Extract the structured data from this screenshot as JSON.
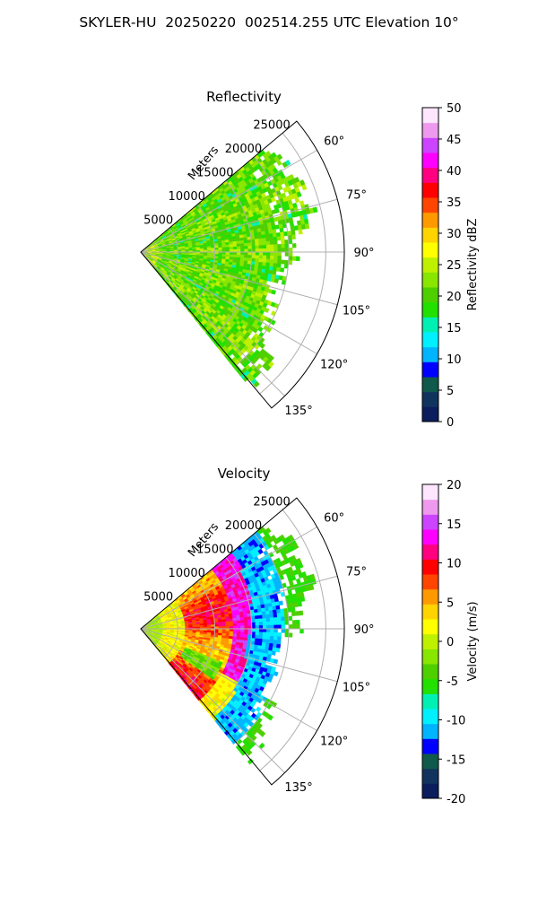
{
  "figure": {
    "title": "SKYLER-HU  20250220  002514.255 UTC Elevation 10°"
  },
  "chart_data": [
    {
      "type": "heatmap",
      "subtype": "polar-sector (PPI)",
      "title": "Reflectivity",
      "radial_axis_label": "Meters",
      "radial_ticks": [
        5000,
        10000,
        15000,
        20000,
        25000
      ],
      "radial_range": [
        0,
        27500
      ],
      "angle_ticks_deg": [
        60,
        75,
        90,
        105,
        120,
        135
      ],
      "angle_tick_labels": [
        "60°",
        "75°",
        "90°",
        "105°",
        "120°",
        "135°"
      ],
      "angle_range_deg": [
        50,
        140
      ],
      "grid": true,
      "colorbar": {
        "label": "Reflectivity dBZ",
        "range": [
          0,
          50
        ],
        "ticks": [
          0,
          5,
          10,
          15,
          20,
          25,
          30,
          35,
          40,
          45,
          50
        ],
        "colors": [
          "#0b1d5c",
          "#10345e",
          "#0f5a4a",
          "#0000ff",
          "#00b4ff",
          "#00f0ff",
          "#00f0b4",
          "#22e000",
          "#4ecf00",
          "#88e600",
          "#bff000",
          "#ffff00",
          "#ffd400",
          "#ff9900",
          "#ff4500",
          "#ff0000",
          "#ff0080",
          "#ff00ff",
          "#cc44ff",
          "#ee99ee",
          "#ffe6ff"
        ]
      },
      "field_summary": "Mostly 18–26 dBZ (green/yellow) across the whole sector out to ~23000 m; slightly higher values near the radar"
    },
    {
      "type": "heatmap",
      "subtype": "polar-sector (PPI)",
      "title": "Velocity",
      "radial_axis_label": "Meters",
      "radial_ticks": [
        5000,
        10000,
        15000,
        20000,
        25000
      ],
      "radial_range": [
        0,
        27500
      ],
      "angle_ticks_deg": [
        60,
        75,
        90,
        105,
        120,
        135
      ],
      "angle_tick_labels": [
        "60°",
        "75°",
        "90°",
        "105°",
        "120°",
        "135°"
      ],
      "angle_range_deg": [
        50,
        140
      ],
      "grid": true,
      "colorbar": {
        "label": "Velocity (m/s)",
        "range": [
          -20,
          20
        ],
        "ticks": [
          -20,
          -15,
          -10,
          -5,
          0,
          5,
          10,
          15,
          20
        ],
        "colors": [
          "#0b1d5c",
          "#10345e",
          "#0f5a4a",
          "#0000ff",
          "#00b4ff",
          "#00f0ff",
          "#00f0b4",
          "#22e000",
          "#4ecf00",
          "#88e600",
          "#bff000",
          "#ffff00",
          "#ffd400",
          "#ff9900",
          "#ff4500",
          "#ff0000",
          "#ff0080",
          "#ff00ff",
          "#cc44ff",
          "#ee99ee",
          "#ffe6ff"
        ]
      },
      "field_summary": "Near-radar values ~0 m/s (green/yellow); a ring of +5 to +12 m/s (orange/red) from ~5000–12000 m; +12 to +18 m/s (magenta) band near ~14000 m; sharp fold to −10 to −15 m/s (cyan/blue) beyond ~15000 m in the north/east; far sector ~−5 m/s (green)"
    }
  ]
}
